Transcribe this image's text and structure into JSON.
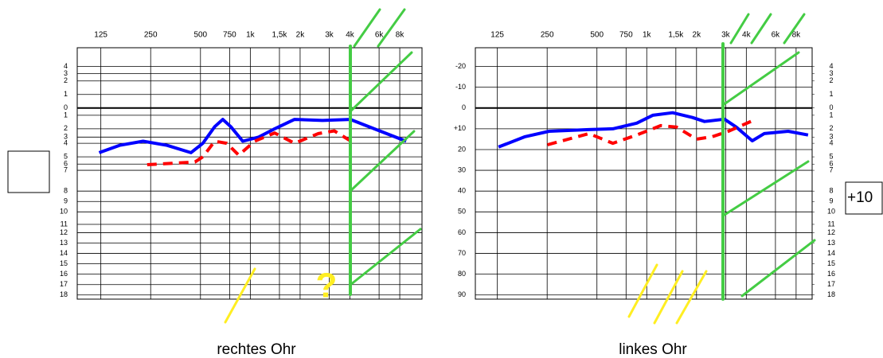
{
  "chart_data": [
    {
      "type": "line",
      "title": "rechtes Ohr",
      "annotation": "?",
      "xscale": "log",
      "xlim": [
        90,
        10900
      ],
      "xticks": [
        125,
        250,
        500,
        750,
        {
          "value": 1000,
          "label": "1k"
        },
        {
          "value": 1500,
          "label": "1,5k"
        },
        {
          "value": 2000,
          "label": "2k"
        },
        {
          "value": 3000,
          "label": "3k"
        },
        {
          "value": 4000,
          "label": "4k"
        },
        {
          "value": 6000,
          "label": "6k"
        },
        {
          "value": 8000,
          "label": "8k"
        }
      ],
      "ylim": [
        -29,
        92
      ],
      "y_inverted": true,
      "yticks": [
        {
          "value": -20,
          "label": "4"
        },
        {
          "value": -16.5,
          "label": "3"
        },
        {
          "value": -13,
          "label": "2"
        },
        {
          "value": -6.5,
          "label": "1"
        },
        0,
        {
          "value": 3.5,
          "label": "1"
        },
        {
          "value": 10,
          "label": "2"
        },
        {
          "value": 14,
          "label": "3"
        },
        {
          "value": 17,
          "label": "4"
        },
        {
          "value": 23.5,
          "label": "5"
        },
        {
          "value": 27,
          "label": "6"
        },
        {
          "value": 30,
          "label": "7"
        },
        {
          "value": 40,
          "label": "8"
        },
        {
          "value": 45,
          "label": "9"
        },
        {
          "value": 50,
          "label": "10"
        },
        {
          "value": 56,
          "label": "11"
        },
        {
          "value": 60,
          "label": "12"
        },
        {
          "value": 65,
          "label": "13"
        },
        {
          "value": 70,
          "label": "14"
        },
        {
          "value": 75,
          "label": "15"
        },
        {
          "value": 80,
          "label": "16"
        },
        {
          "value": 85,
          "label": "17"
        },
        {
          "value": 90,
          "label": "18"
        }
      ],
      "grid": true,
      "series": [
        {
          "color": "#0000ff",
          "line_style": "solid",
          "x": [
            122,
            162,
            225,
            314,
            438,
            517,
            610,
            682,
            762,
            900,
            1124,
            1402,
            1850,
            2730,
            4020,
            5610,
            8740
          ],
          "values": [
            21.5,
            18,
            16,
            18,
            21.5,
            17,
            9,
            5.5,
            9,
            16,
            14,
            10,
            5.5,
            6,
            5.5,
            10,
            16
          ]
        },
        {
          "color": "#ff0000",
          "line_style": "dashed",
          "x": [
            238,
            463,
            517,
            610,
            721,
            851,
            1063,
            1402,
            1850,
            2580,
            3220,
            4250
          ],
          "values": [
            27.3,
            26,
            23.5,
            16,
            17,
            22.7,
            16,
            12,
            17,
            12.3,
            11,
            17
          ]
        }
      ]
    },
    {
      "type": "line",
      "title": "linkes Ohr",
      "annotation": "+10",
      "xscale": "log",
      "xlim": [
        92,
        10000
      ],
      "xticks": [
        125,
        250,
        500,
        750,
        {
          "value": 1000,
          "label": "1k"
        },
        {
          "value": 1500,
          "label": "1,5k"
        },
        {
          "value": 2000,
          "label": "2k"
        },
        {
          "value": 3000,
          "label": "3k"
        },
        {
          "value": 4000,
          "label": "4k"
        },
        {
          "value": 6000,
          "label": "6k"
        },
        {
          "value": 8000,
          "label": "8k"
        }
      ],
      "ylim": [
        -29,
        92
      ],
      "y_inverted": true,
      "yticks": [
        -20,
        -10,
        0,
        {
          "value": 10,
          "label": "+10"
        },
        20,
        30,
        40,
        50,
        60,
        70,
        80,
        90
      ],
      "y2lim": [
        -29,
        92
      ],
      "y2ticks": [
        {
          "value": -20,
          "label": "4"
        },
        {
          "value": -16.5,
          "label": "3"
        },
        {
          "value": -13,
          "label": "2"
        },
        {
          "value": -6.5,
          "label": "1"
        },
        0,
        {
          "value": 3.5,
          "label": "1"
        },
        {
          "value": 10,
          "label": "2"
        },
        {
          "value": 14,
          "label": "3"
        },
        {
          "value": 17,
          "label": "4"
        },
        {
          "value": 23.5,
          "label": "5"
        },
        {
          "value": 27,
          "label": "6"
        },
        {
          "value": 30,
          "label": "7"
        },
        {
          "value": 40,
          "label": "8"
        },
        {
          "value": 45,
          "label": "9"
        },
        {
          "value": 50,
          "label": "10"
        },
        {
          "value": 56,
          "label": "11"
        },
        {
          "value": 60,
          "label": "12"
        },
        {
          "value": 65,
          "label": "13"
        },
        {
          "value": 70,
          "label": "14"
        },
        {
          "value": 75,
          "label": "15"
        },
        {
          "value": 80,
          "label": "16"
        },
        {
          "value": 85,
          "label": "17"
        },
        {
          "value": 90,
          "label": "18"
        }
      ],
      "grid": true,
      "series": [
        {
          "color": "#0000ff",
          "line_style": "solid",
          "x": [
            127,
            184,
            257,
            447,
            624,
            870,
            1087,
            1434,
            1890,
            2235,
            2950,
            3480,
            4345,
            5130,
            7160,
            9450
          ],
          "values": [
            18.8,
            13.8,
            11.2,
            10.4,
            10,
            7.3,
            3.5,
            2.3,
            4.6,
            6.5,
            5.4,
            9.2,
            15.8,
            12.3,
            11.2,
            13
          ]
        },
        {
          "color": "#ff0000",
          "line_style": "dashed",
          "x": [
            251,
            447,
            624,
            870,
            1214,
            1516,
            2000,
            2496,
            3117,
            4345
          ],
          "values": [
            17.7,
            12.3,
            17,
            13,
            8.5,
            9.2,
            15,
            13.8,
            11.2,
            6.2
          ]
        }
      ]
    }
  ]
}
